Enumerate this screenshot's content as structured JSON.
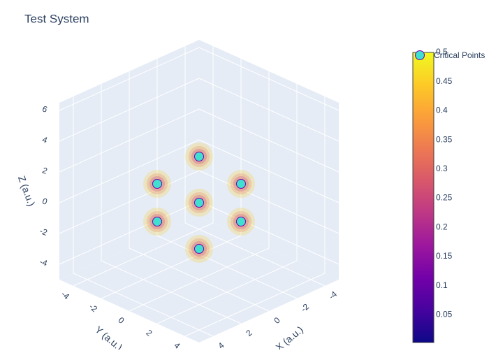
{
  "chart_data": {
    "type": "scatter3d",
    "title": "Test System",
    "series": [
      {
        "name": "Critical Points",
        "color": "#40e0d0",
        "x": [
          0,
          0,
          0,
          3,
          -3,
          0,
          0
        ],
        "y": [
          0,
          0,
          0,
          0,
          0,
          3,
          -3
        ],
        "z": [
          0,
          3,
          -3,
          0,
          0,
          0,
          0
        ]
      }
    ],
    "xlabel": "X (a.u.)",
    "ylabel": "Y (a.u.)",
    "zlabel": "Z (a.u.)",
    "xlim": [
      -5,
      5
    ],
    "ylim": [
      -5,
      5
    ],
    "zlim": [
      -5,
      6.5
    ],
    "xticks": [
      -4,
      -2,
      0,
      2,
      4
    ],
    "yticks": [
      -4,
      -2,
      0,
      2,
      4
    ],
    "zticks": [
      -4,
      -2,
      0,
      2,
      4,
      6
    ],
    "colorbar": {
      "clim": [
        0,
        0.5
      ],
      "ticks": [
        0.05,
        0.1,
        0.15,
        0.2,
        0.25,
        0.3,
        0.35,
        0.4,
        0.45,
        0.5
      ],
      "colorscale": [
        "#0d0887",
        "#46039f",
        "#7201a8",
        "#9c179e",
        "#bd3786",
        "#d8576b",
        "#ed7953",
        "#fb9f3a",
        "#fdca26",
        "#f0f921"
      ]
    }
  }
}
